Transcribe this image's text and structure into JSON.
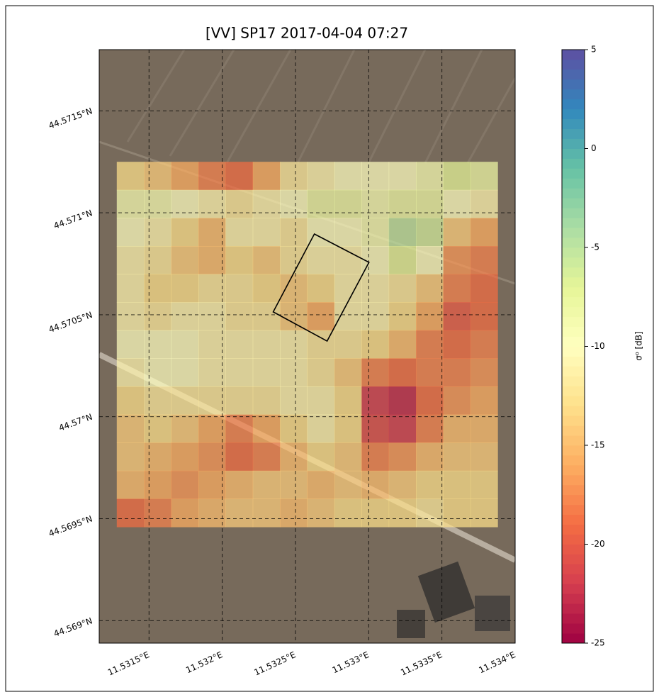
{
  "chart_data": {
    "type": "heatmap",
    "title": "[VV] SP17 2017-04-04 07:27",
    "xlim": [
      11.53116,
      11.534
    ],
    "ylim": [
      44.56889,
      44.5718
    ],
    "xticks": [
      {
        "value": 11.5315,
        "label": "11.5315°E"
      },
      {
        "value": 11.532,
        "label": "11.532°E"
      },
      {
        "value": 11.5325,
        "label": "11.5325°E"
      },
      {
        "value": 11.533,
        "label": "11.533°E"
      },
      {
        "value": 11.5335,
        "label": "11.5335°E"
      },
      {
        "value": 11.534,
        "label": "11.534°E"
      }
    ],
    "yticks": [
      {
        "value": 44.569,
        "label": "44.569°N"
      },
      {
        "value": 44.5695,
        "label": "44.5695°N"
      },
      {
        "value": 44.57,
        "label": "44.57°N"
      },
      {
        "value": 44.5705,
        "label": "44.5705°N"
      },
      {
        "value": 44.571,
        "label": "44.571°N"
      },
      {
        "value": 44.5715,
        "label": "44.5715°N"
      }
    ],
    "grid": true,
    "extent": {
      "x": [
        11.53128,
        11.53388
      ],
      "y": [
        44.56946,
        44.57125
      ]
    },
    "z": [
      [
        -13,
        -14,
        -16,
        -18,
        -19,
        -16,
        -12,
        -11,
        -10,
        -10,
        -10,
        -9,
        -7,
        -8
      ],
      [
        -9,
        -9,
        -10,
        -11,
        -12,
        -11,
        -10,
        -8,
        -8,
        -9,
        -8,
        -8,
        -10,
        -11
      ],
      [
        -10,
        -11,
        -13,
        -15,
        -11,
        -11,
        -12,
        -10,
        -10,
        -9,
        -5,
        -6,
        -14,
        -16
      ],
      [
        -11,
        -12,
        -14,
        -15,
        -13,
        -14,
        -12,
        -11,
        -11,
        -10,
        -7,
        -10,
        -17,
        -18
      ],
      [
        -11,
        -13,
        -13,
        -12,
        -12,
        -13,
        -14,
        -13,
        -11,
        -11,
        -12,
        -14,
        -18,
        -19
      ],
      [
        -11,
        -12,
        -11,
        -11,
        -12,
        -12,
        -14,
        -16,
        -11,
        -11,
        -13,
        -16,
        -20,
        -19
      ],
      [
        -10,
        -10,
        -10,
        -11,
        -11,
        -11,
        -11,
        -12,
        -12,
        -13,
        -15,
        -18,
        -19,
        -18
      ],
      [
        -11,
        -10,
        -10,
        -11,
        -11,
        -11,
        -11,
        -12,
        -14,
        -18,
        -19,
        -18,
        -18,
        -17
      ],
      [
        -13,
        -12,
        -12,
        -12,
        -12,
        -12,
        -11,
        -11,
        -13,
        -22,
        -23,
        -19,
        -17,
        -16
      ],
      [
        -14,
        -13,
        -14,
        -16,
        -18,
        -16,
        -13,
        -11,
        -13,
        -21,
        -22,
        -18,
        -15,
        -15
      ],
      [
        -14,
        -15,
        -16,
        -17,
        -19,
        -18,
        -15,
        -13,
        -14,
        -18,
        -17,
        -15,
        -14,
        -14
      ],
      [
        -15,
        -16,
        -17,
        -16,
        -15,
        -14,
        -14,
        -15,
        -14,
        -15,
        -14,
        -13,
        -13,
        -13
      ],
      [
        -19,
        -18,
        -16,
        -15,
        -14,
        -14,
        -15,
        -14,
        -13,
        -13,
        -13,
        -12,
        -13,
        -13
      ]
    ],
    "opacity": 0.72,
    "colormap": [
      "#9e0142",
      "#d53e4f",
      "#f46d43",
      "#fdae61",
      "#fee08b",
      "#ffffbf",
      "#e6f598",
      "#abdda4",
      "#66c2a5",
      "#3288bd",
      "#5e4fa2"
    ],
    "clim": [
      -25,
      5
    ],
    "colorbar_ticks": [
      5,
      0,
      -5,
      -10,
      -15,
      -20,
      -25
    ],
    "colorbar_label": "σ⁰ [dB]",
    "polygon": {
      "x": [
        11.532629,
        11.533002,
        11.532716,
        11.532348
      ],
      "y": [
        44.570896,
        44.570757,
        44.570371,
        44.570514
      ]
    }
  }
}
